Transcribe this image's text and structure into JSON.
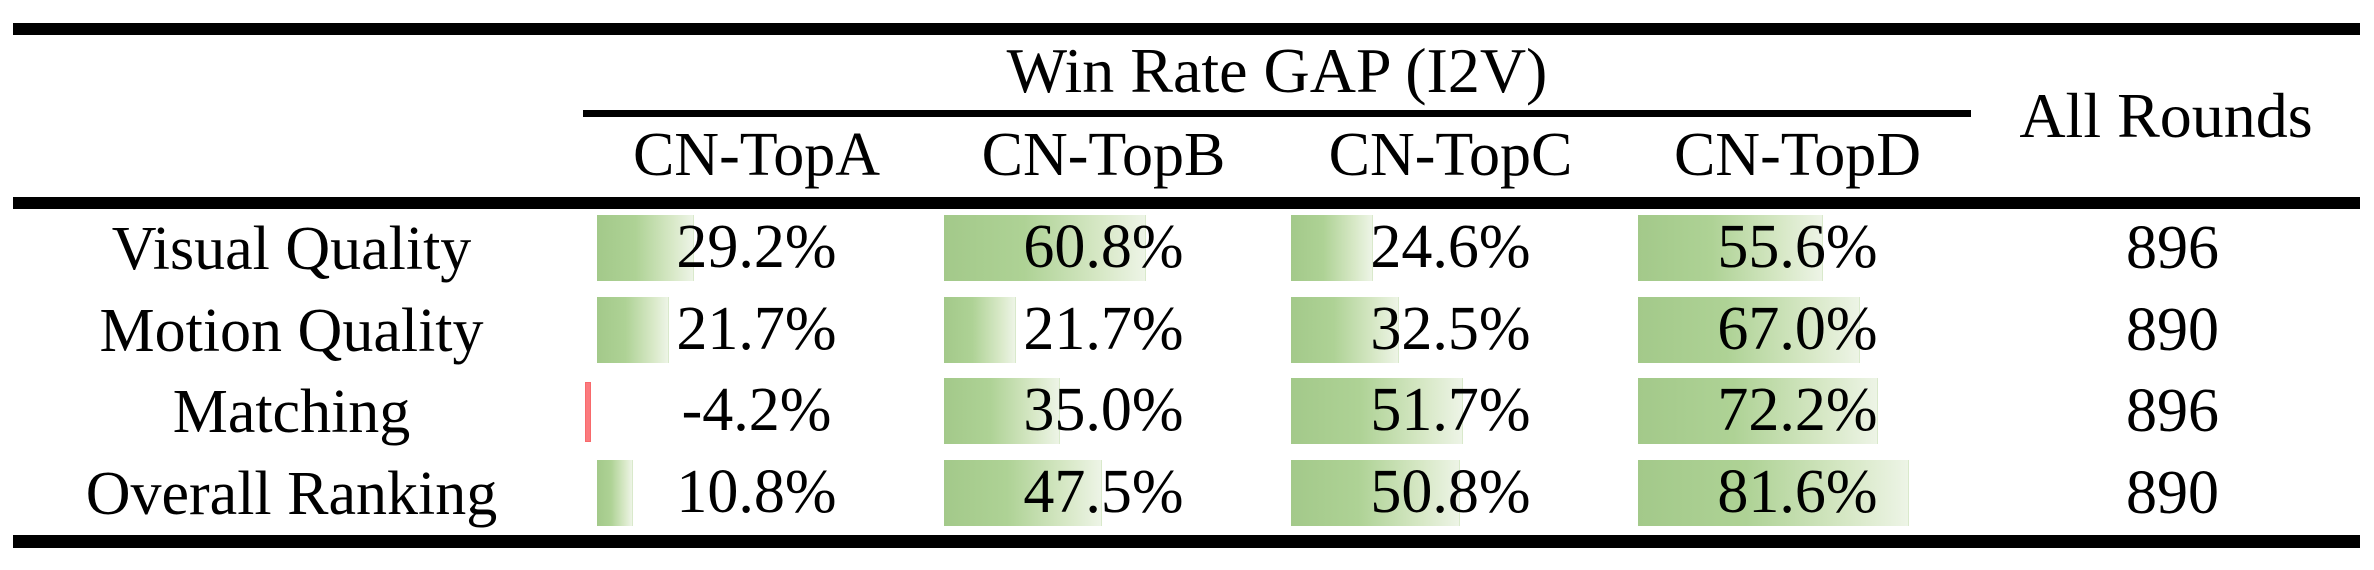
{
  "table": {
    "group_header": "Win Rate GAP (I2V)",
    "all_rounds_header": "All Rounds",
    "columns": [
      "CN-TopA",
      "CN-TopB",
      "CN-TopC",
      "CN-TopD"
    ],
    "rows": [
      {
        "label": "Visual Quality",
        "cells": [
          {
            "value": 29.2,
            "label": "29.2%"
          },
          {
            "value": 60.8,
            "label": "60.8%"
          },
          {
            "value": 24.6,
            "label": "24.6%"
          },
          {
            "value": 55.6,
            "label": "55.6%"
          }
        ],
        "all_rounds": "896"
      },
      {
        "label": "Motion Quality",
        "cells": [
          {
            "value": 21.7,
            "label": "21.7%"
          },
          {
            "value": 21.7,
            "label": "21.7%"
          },
          {
            "value": 32.5,
            "label": "32.5%"
          },
          {
            "value": 67.0,
            "label": "67.0%"
          }
        ],
        "all_rounds": "890"
      },
      {
        "label": "Matching",
        "cells": [
          {
            "value": -4.2,
            "label": "-4.2%"
          },
          {
            "value": 35.0,
            "label": "35.0%"
          },
          {
            "value": 51.7,
            "label": "51.7%"
          },
          {
            "value": 72.2,
            "label": "72.2%"
          }
        ],
        "all_rounds": "896"
      },
      {
        "label": "Overall Ranking",
        "cells": [
          {
            "value": 10.8,
            "label": "10.8%"
          },
          {
            "value": 47.5,
            "label": "47.5%"
          },
          {
            "value": 50.8,
            "label": "50.8%"
          },
          {
            "value": 81.6,
            "label": "81.6%"
          }
        ],
        "all_rounds": "890"
      }
    ],
    "colors": {
      "bar_positive_start": "#a3c98a",
      "bar_positive_end": "#edf4e6",
      "bar_negative": "#f8696b",
      "rule": "#000000",
      "text": "#000000"
    }
  }
}
